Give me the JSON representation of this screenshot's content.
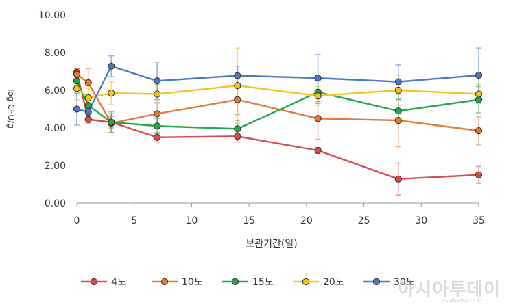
{
  "chart_data": {
    "type": "line",
    "xlabel": "보관기간(일)",
    "ylabel": "log CFU/g",
    "xlim": [
      0,
      35
    ],
    "ylim": [
      0,
      10
    ],
    "xticks": [
      "0",
      "5",
      "10",
      "15",
      "20",
      "25",
      "30",
      "35"
    ],
    "yticks": [
      "0.00",
      "2.00",
      "4.00",
      "6.00",
      "8.00",
      "10.00"
    ],
    "grid": false,
    "legend_position": "bottom",
    "series": [
      {
        "name": "4도",
        "color": "#d94a4a",
        "x": [
          0,
          1,
          3,
          7,
          14,
          21,
          28,
          35
        ],
        "y": [
          6.95,
          4.45,
          4.3,
          3.5,
          3.55,
          2.8,
          1.28,
          1.5
        ],
        "err": [
          0.2,
          0.2,
          0.3,
          0.25,
          0.3,
          0.15,
          0.85,
          0.45
        ]
      },
      {
        "name": "10도",
        "color": "#e07b39",
        "x": [
          0,
          1,
          3,
          7,
          14,
          21,
          28,
          35
        ],
        "y": [
          6.85,
          6.4,
          4.25,
          4.75,
          5.5,
          4.5,
          4.4,
          3.85
        ],
        "err": [
          0.3,
          0.75,
          0.5,
          0.6,
          0.8,
          1.1,
          1.4,
          0.75
        ]
      },
      {
        "name": "15도",
        "color": "#23a84d",
        "x": [
          0,
          1,
          3,
          7,
          14,
          21,
          28,
          35
        ],
        "y": [
          6.5,
          5.2,
          4.3,
          4.1,
          3.95,
          5.9,
          4.9,
          5.5
        ],
        "err": [
          0.4,
          0.3,
          0.55,
          0.4,
          0.45,
          0.6,
          0.6,
          0.7
        ]
      },
      {
        "name": "20도",
        "color": "#f5c220",
        "x": [
          0,
          1,
          3,
          7,
          14,
          21,
          28,
          35
        ],
        "y": [
          6.1,
          5.6,
          5.85,
          5.8,
          6.25,
          5.7,
          6.0,
          5.8
        ],
        "err": [
          0.6,
          0.5,
          0.6,
          0.5,
          2.0,
          0.5,
          0.8,
          0.5
        ]
      },
      {
        "name": "30도",
        "color": "#4a78c2",
        "x": [
          0,
          1,
          3,
          7,
          14,
          21,
          28,
          35
        ],
        "y": [
          5.0,
          4.85,
          7.28,
          6.5,
          6.78,
          6.65,
          6.45,
          6.8
        ],
        "err": [
          0.85,
          0.3,
          0.55,
          1.0,
          0.5,
          1.25,
          0.9,
          1.45
        ]
      }
    ]
  },
  "watermark": {
    "text": "아시아투데이",
    "sub": "asiatoday.co.kr"
  }
}
